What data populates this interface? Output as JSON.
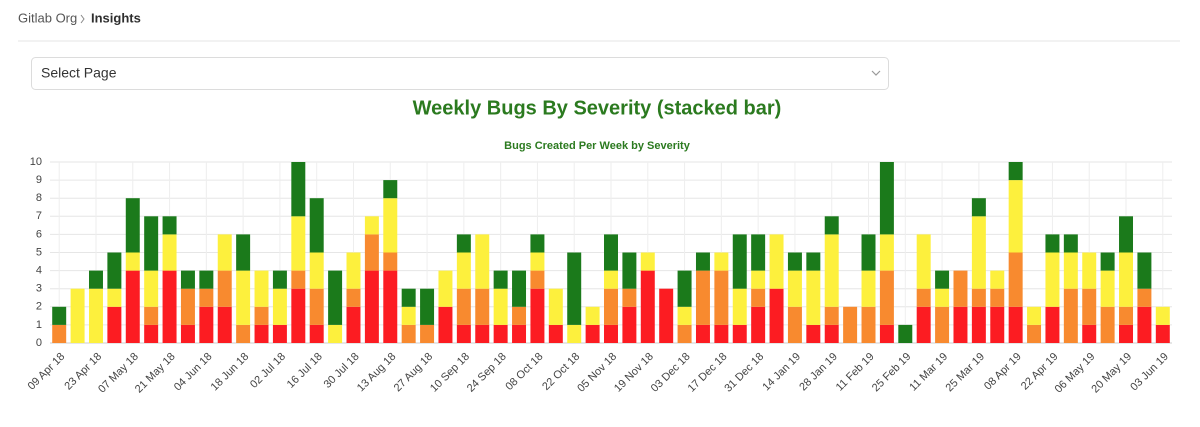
{
  "breadcrumb": [
    "Gitlab Org",
    "Insights"
  ],
  "select": {
    "placeholder": "Select Page"
  },
  "heading": "Weekly Bugs By Severity (stacked bar)",
  "chart_data": {
    "type": "stacked_bar",
    "title": "Bugs Created Per Week by Severity",
    "categories": [
      "09 Apr 18",
      null,
      "23 Apr 18",
      null,
      "07 May 18",
      null,
      "21 May 18",
      null,
      "04 Jun 18",
      null,
      "18 Jun 18",
      null,
      "02 Jul 18",
      null,
      "16 Jul 18",
      null,
      "30 Jul 18",
      null,
      "13 Aug 18",
      null,
      "27 Aug 18",
      null,
      "10 Sep 18",
      null,
      "24 Sep 18",
      null,
      "08 Oct 18",
      null,
      "22 Oct 18",
      null,
      "05 Nov 18",
      null,
      "19 Nov 18",
      null,
      "03 Dec 18",
      null,
      "17 Dec 18",
      null,
      "31 Dec 18",
      null,
      "14 Jan 19",
      null,
      "28 Jan 19",
      null,
      "11 Feb 19",
      null,
      "25 Feb 19",
      null,
      "11 Mar 19",
      null,
      "25 Mar 19",
      null,
      "08 Apr 19",
      null,
      "22 Apr 19",
      null,
      "06 May 19",
      null,
      "20 May 19",
      null,
      "03 Jun 19"
    ],
    "series": [
      {
        "color": "#fc1c22",
        "values": [
          0,
          0,
          0,
          2,
          4,
          1,
          4,
          1,
          2,
          2,
          0,
          1,
          1,
          3,
          1,
          0,
          2,
          4,
          4,
          0,
          0,
          2,
          1,
          1,
          1,
          1,
          3,
          1,
          0,
          1,
          1,
          2,
          4,
          3,
          0,
          1,
          1,
          1,
          2,
          3,
          0,
          1,
          1,
          0,
          0,
          1,
          0,
          2,
          0,
          2,
          2,
          2,
          2,
          0,
          2,
          0,
          1,
          0,
          1,
          2,
          1
        ]
      },
      {
        "color": "#f88a2f",
        "values": [
          1,
          0,
          0,
          0,
          0,
          1,
          0,
          2,
          1,
          2,
          1,
          1,
          0,
          1,
          2,
          0,
          1,
          2,
          1,
          1,
          1,
          0,
          2,
          2,
          0,
          1,
          1,
          0,
          0,
          0,
          2,
          1,
          0,
          0,
          1,
          3,
          3,
          0,
          1,
          0,
          2,
          0,
          1,
          2,
          2,
          3,
          0,
          1,
          2,
          2,
          1,
          1,
          3,
          1,
          0,
          3,
          2,
          2,
          1,
          1,
          0
        ]
      },
      {
        "color": "#fdf03d",
        "values": [
          0,
          3,
          3,
          1,
          1,
          2,
          2,
          0,
          0,
          2,
          3,
          2,
          2,
          3,
          2,
          1,
          2,
          1,
          3,
          1,
          0,
          2,
          2,
          3,
          2,
          0,
          1,
          2,
          1,
          1,
          1,
          0,
          1,
          0,
          1,
          0,
          1,
          2,
          1,
          3,
          2,
          3,
          4,
          0,
          2,
          2,
          0,
          3,
          1,
          0,
          4,
          1,
          4,
          1,
          3,
          2,
          2,
          2,
          3,
          0,
          1
        ]
      },
      {
        "color": "#1b7a1b",
        "values": [
          1,
          0,
          1,
          2,
          3,
          3,
          1,
          1,
          1,
          0,
          2,
          0,
          1,
          3,
          3,
          3,
          0,
          0,
          1,
          1,
          2,
          0,
          1,
          0,
          1,
          2,
          1,
          0,
          4,
          0,
          2,
          2,
          0,
          0,
          2,
          1,
          0,
          3,
          2,
          0,
          1,
          1,
          1,
          0,
          2,
          4,
          1,
          0,
          1,
          0,
          1,
          0,
          1,
          0,
          1,
          1,
          0,
          1,
          2,
          2,
          0
        ]
      }
    ],
    "ylim": [
      0,
      10
    ],
    "yticks": [
      0,
      1,
      2,
      3,
      4,
      5,
      6,
      7,
      8,
      9,
      10
    ],
    "grid": true
  }
}
